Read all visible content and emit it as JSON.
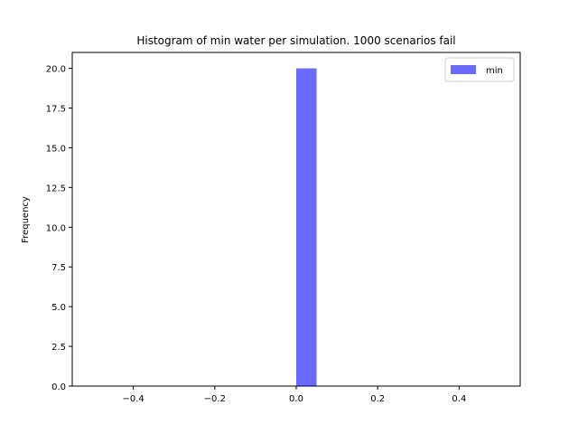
{
  "chart_data": {
    "type": "bar",
    "title": "Histogram of min water per simulation.  1000 scenarios fail",
    "xlabel": "",
    "ylabel": "Frequency",
    "xlim": [
      -0.55,
      0.55
    ],
    "ylim": [
      0,
      21
    ],
    "xticks": [
      -0.4,
      -0.2,
      0.0,
      0.2,
      0.4
    ],
    "xtick_labels": [
      "−0.4",
      "−0.2",
      "0.0",
      "0.2",
      "0.4"
    ],
    "yticks": [
      0.0,
      2.5,
      5.0,
      7.5,
      10.0,
      12.5,
      15.0,
      17.5,
      20.0
    ],
    "ytick_labels": [
      "0.0",
      "2.5",
      "5.0",
      "7.5",
      "10.0",
      "12.5",
      "15.0",
      "17.5",
      "20.0"
    ],
    "series": [
      {
        "name": "min",
        "color": "#6a6aff",
        "bins": [
          {
            "x0": 0.0,
            "x1": 0.05,
            "value": 20
          }
        ]
      }
    ],
    "legend": {
      "position": "top-right",
      "entries": [
        "min"
      ]
    },
    "grid": false
  }
}
